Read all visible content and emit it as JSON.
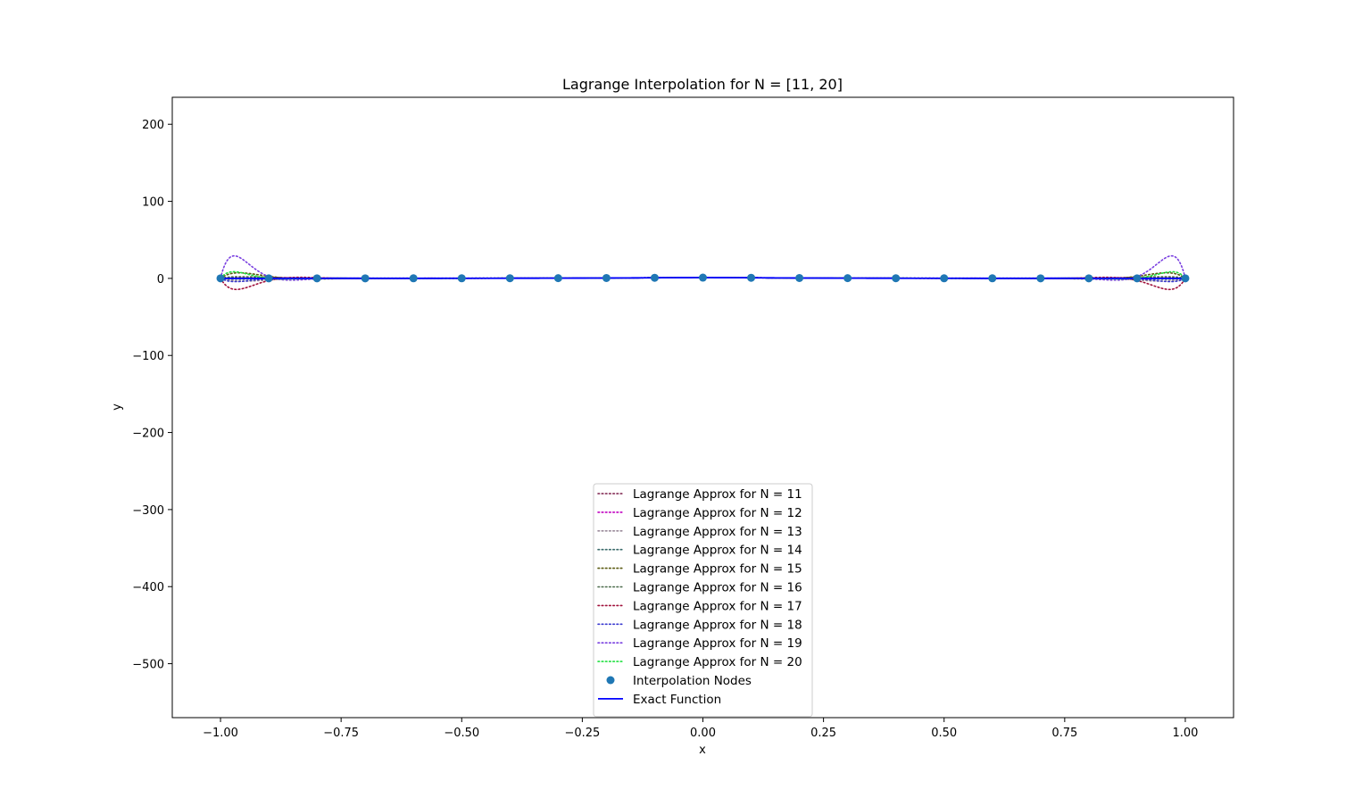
{
  "chart_data": {
    "type": "line",
    "title": "Lagrange Interpolation for N = [11, 20]",
    "xlabel": "x",
    "ylabel": "y",
    "xlim": [
      -1.1,
      1.1
    ],
    "ylim": [
      -570,
      235
    ],
    "xticks": [
      -1.0,
      -0.75,
      -0.5,
      -0.25,
      0.0,
      0.25,
      0.5,
      0.75,
      1.0
    ],
    "xtick_labels": [
      "−1.00",
      "−0.75",
      "−0.50",
      "−0.25",
      "0.00",
      "0.25",
      "0.50",
      "0.75",
      "1.00"
    ],
    "yticks": [
      200,
      100,
      0,
      -100,
      -200,
      -300,
      -400,
      -500
    ],
    "ytick_labels": [
      "200",
      "100",
      "0",
      "−100",
      "−200",
      "−300",
      "−400",
      "−500"
    ],
    "grid": false,
    "legend_position": "bottom-center",
    "exact_function": "1/(1+25x^2)",
    "series": [
      {
        "name": "Lagrange Approx for N = 11",
        "n": 11,
        "color": "#7b1f4a",
        "dotted": true
      },
      {
        "name": "Lagrange Approx for N = 12",
        "n": 12,
        "color": "#c000c0",
        "dotted": true
      },
      {
        "name": "Lagrange Approx for N = 13",
        "n": 13,
        "color": "#9a8a9a",
        "dotted": true
      },
      {
        "name": "Lagrange Approx for N = 14",
        "n": 14,
        "color": "#3a6a6a",
        "dotted": true
      },
      {
        "name": "Lagrange Approx for N = 15",
        "n": 15,
        "color": "#5a5a10",
        "dotted": true
      },
      {
        "name": "Lagrange Approx for N = 16",
        "n": 16,
        "color": "#4a6a4a",
        "dotted": true
      },
      {
        "name": "Lagrange Approx for N = 17",
        "n": 17,
        "color": "#a0103a",
        "dotted": true
      },
      {
        "name": "Lagrange Approx for N = 18",
        "n": 18,
        "color": "#3a3ad0",
        "dotted": true
      },
      {
        "name": "Lagrange Approx for N = 19",
        "n": 19,
        "color": "#7a40e0",
        "dotted": true
      },
      {
        "name": "Lagrange Approx for N = 20",
        "n": 20,
        "color": "#20e040",
        "dotted": true
      }
    ],
    "nodes": {
      "name": "Interpolation Nodes",
      "color": "#1f77b4",
      "x": [
        -1.0,
        -0.9,
        -0.8,
        -0.7,
        -0.6,
        -0.5,
        -0.4,
        -0.3,
        -0.2,
        -0.1,
        0.0,
        0.1,
        0.2,
        0.3,
        0.4,
        0.5,
        0.6,
        0.7,
        0.8,
        0.9,
        1.0
      ],
      "y": [
        0.038,
        0.047,
        0.059,
        0.075,
        0.1,
        0.138,
        0.2,
        0.308,
        0.5,
        0.8,
        1.0,
        0.8,
        0.5,
        0.308,
        0.2,
        0.138,
        0.1,
        0.075,
        0.059,
        0.047,
        0.038
      ]
    },
    "exact": {
      "name": "Exact Function",
      "color": "#0000ff"
    }
  }
}
